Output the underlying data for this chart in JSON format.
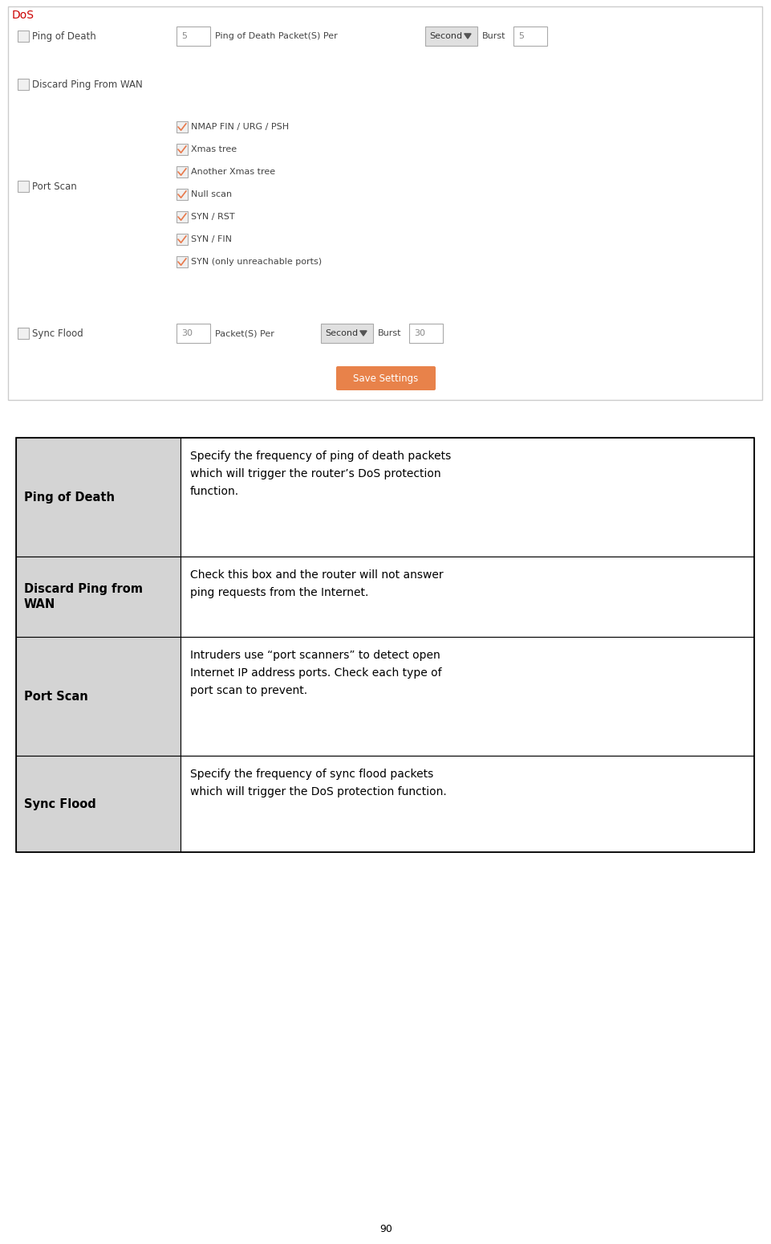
{
  "page_number": "90",
  "bg_color": "#ffffff",
  "dos_title": "DoS",
  "dos_title_color": "#cc0000",
  "ping_of_death": {
    "label": "Ping of Death",
    "value1": "5",
    "mid_label": "Ping of Death Packet(S) Per",
    "dropdown": "Second",
    "burst_label": "Burst",
    "value2": "5"
  },
  "discard_ping": {
    "label": "Discard Ping From WAN"
  },
  "port_scan": {
    "label": "Port Scan",
    "checkboxes": [
      "NMAP FIN / URG / PSH",
      "Xmas tree",
      "Another Xmas tree",
      "Null scan",
      "SYN / RST",
      "SYN / FIN",
      "SYN (only unreachable ports)"
    ]
  },
  "sync_flood": {
    "label": "Sync Flood",
    "value1": "30",
    "mid_label": "Packet(S) Per",
    "dropdown": "Second",
    "burst_label": "Burst",
    "value2": "30"
  },
  "save_button_text": "Save Settings",
  "save_button_bg": "#e8824a",
  "save_button_text_color": "#ffffff",
  "table_rows": [
    {
      "term": "Ping of Death",
      "desc": "Specify the frequency of ping of death packets\nwhich will trigger the router’s DoS protection\nfunction."
    },
    {
      "term": "Discard Ping from\nWAN",
      "desc": "Check this box and the router will not answer\nping requests from the Internet."
    },
    {
      "term": "Port Scan",
      "desc": "Intruders use “port scanners” to detect open\nInternet IP address ports. Check each type of\nport scan to prevent."
    },
    {
      "term": "Sync Flood",
      "desc": "Specify the frequency of sync flood packets\nwhich will trigger the DoS protection function."
    }
  ]
}
